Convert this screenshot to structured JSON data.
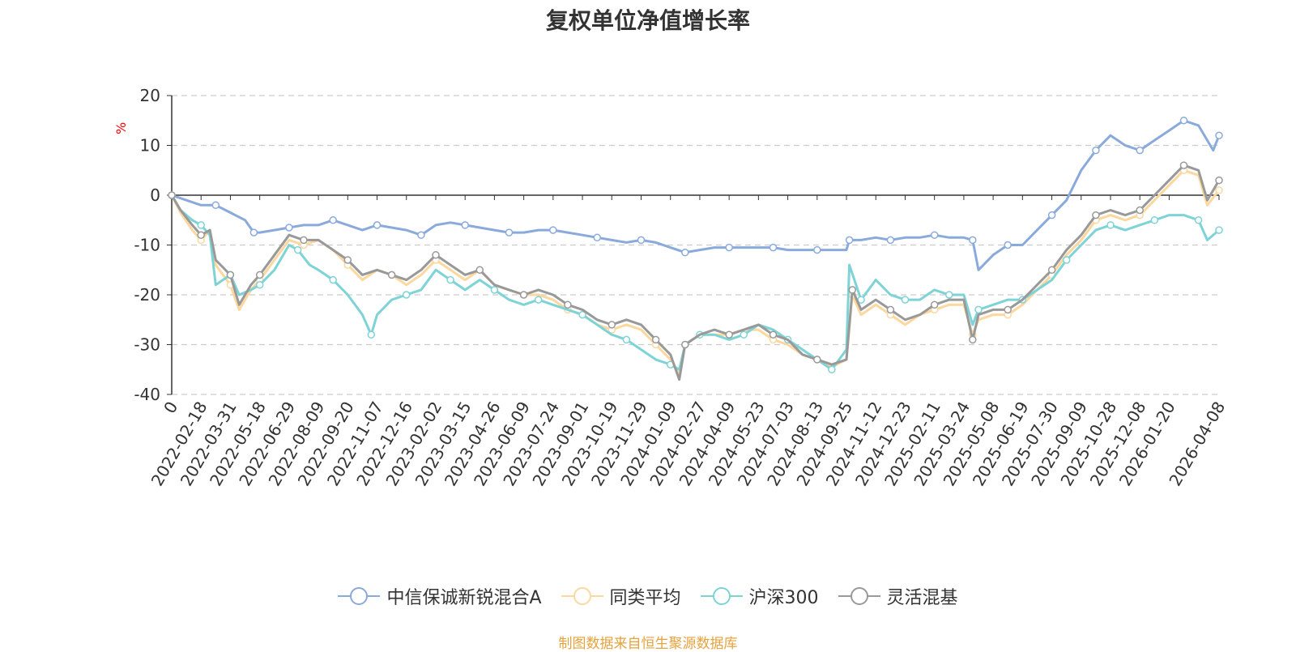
{
  "chart_data": {
    "type": "line",
    "title": "复权单位净值增长率",
    "ylabel": "%",
    "ylim": [
      -40,
      20
    ],
    "yticks": [
      20,
      10,
      0,
      -10,
      -20,
      -30,
      -40
    ],
    "grid": true,
    "legend_position": "bottom",
    "x_labels": [
      "0",
      "2022-02-18",
      "2022-03-31",
      "2022-05-18",
      "2022-06-29",
      "2022-08-09",
      "2022-09-20",
      "2022-11-07",
      "2022-12-16",
      "2023-02-02",
      "2023-03-15",
      "2023-04-26",
      "2023-06-09",
      "2023-07-24",
      "2023-09-01",
      "2023-10-19",
      "2023-11-29",
      "2024-01-09",
      "2024-02-27",
      "2024-04-09",
      "2024-05-23",
      "2024-07-03",
      "2024-08-13",
      "2024-09-25",
      "2024-11-12",
      "2024-12-23",
      "2025-02-11",
      "2025-03-24",
      "2025-05-08",
      "2025-06-19",
      "2025-07-30",
      "2025-09-09",
      "2025-10-28",
      "2025-12-08",
      "2026-01-20",
      "2026-04-08"
    ],
    "x_positions": [
      0,
      1,
      2,
      3,
      4,
      5,
      6,
      7,
      8,
      9,
      10,
      11,
      12,
      13,
      14,
      15,
      16,
      17,
      18,
      19,
      20,
      21,
      22,
      23,
      24,
      25,
      26,
      27,
      28,
      29,
      30,
      31,
      32,
      33,
      34,
      35.7
    ],
    "series": [
      {
        "name": "中信保诚新锐混合A",
        "color": "#8aaadc",
        "points": [
          [
            0,
            0
          ],
          [
            0.5,
            -1
          ],
          [
            1,
            -2
          ],
          [
            1.5,
            -2
          ],
          [
            2,
            -3.5
          ],
          [
            2.5,
            -5
          ],
          [
            2.8,
            -7.5
          ],
          [
            3,
            -7.5
          ],
          [
            3.5,
            -7
          ],
          [
            4,
            -6.5
          ],
          [
            4.5,
            -6
          ],
          [
            5,
            -6
          ],
          [
            5.5,
            -5
          ],
          [
            6,
            -6
          ],
          [
            6.5,
            -7
          ],
          [
            7,
            -6
          ],
          [
            7.5,
            -6.5
          ],
          [
            8,
            -7
          ],
          [
            8.5,
            -8
          ],
          [
            9,
            -6
          ],
          [
            9.5,
            -5.5
          ],
          [
            10,
            -6
          ],
          [
            10.5,
            -6.5
          ],
          [
            11,
            -7
          ],
          [
            11.5,
            -7.5
          ],
          [
            12,
            -7.5
          ],
          [
            12.5,
            -7
          ],
          [
            13,
            -7
          ],
          [
            13.5,
            -7.5
          ],
          [
            14,
            -8
          ],
          [
            14.5,
            -8.5
          ],
          [
            15,
            -9
          ],
          [
            15.5,
            -9.5
          ],
          [
            16,
            -9
          ],
          [
            16.5,
            -9.5
          ],
          [
            17,
            -10.5
          ],
          [
            17.5,
            -11.5
          ],
          [
            18,
            -11
          ],
          [
            18.5,
            -10.5
          ],
          [
            19,
            -10.5
          ],
          [
            19.5,
            -10.5
          ],
          [
            20,
            -10.5
          ],
          [
            20.5,
            -10.5
          ],
          [
            21,
            -11
          ],
          [
            21.5,
            -11
          ],
          [
            22,
            -11
          ],
          [
            22.5,
            -11
          ],
          [
            23,
            -11
          ],
          [
            23.1,
            -9
          ],
          [
            23.5,
            -9
          ],
          [
            24,
            -8.5
          ],
          [
            24.5,
            -9
          ],
          [
            25,
            -8.5
          ],
          [
            25.5,
            -8.5
          ],
          [
            26,
            -8
          ],
          [
            26.5,
            -8.5
          ],
          [
            27,
            -8.5
          ],
          [
            27.3,
            -9
          ],
          [
            27.5,
            -15
          ],
          [
            28,
            -12
          ],
          [
            28.5,
            -10
          ],
          [
            29,
            -10
          ],
          [
            29.5,
            -7
          ],
          [
            30,
            -4
          ],
          [
            30.5,
            -1
          ],
          [
            31,
            5
          ],
          [
            31.5,
            9
          ],
          [
            32,
            12
          ],
          [
            32.5,
            10
          ],
          [
            33,
            9
          ],
          [
            33.5,
            11
          ],
          [
            34,
            13
          ],
          [
            34.5,
            15
          ],
          [
            35,
            14
          ],
          [
            35.5,
            9
          ],
          [
            35.7,
            12
          ]
        ]
      },
      {
        "name": "同类平均",
        "color": "#fcd79e",
        "points": [
          [
            0,
            0
          ],
          [
            0.3,
            -3.5
          ],
          [
            0.7,
            -7
          ],
          [
            1,
            -9
          ],
          [
            1.3,
            -7
          ],
          [
            1.5,
            -14
          ],
          [
            2,
            -18
          ],
          [
            2.3,
            -23
          ],
          [
            2.7,
            -19
          ],
          [
            3,
            -17
          ],
          [
            3.5,
            -13
          ],
          [
            4,
            -9
          ],
          [
            4.5,
            -10
          ],
          [
            5,
            -9
          ],
          [
            5.5,
            -11
          ],
          [
            6,
            -14
          ],
          [
            6.5,
            -17
          ],
          [
            7,
            -15
          ],
          [
            7.5,
            -16
          ],
          [
            8,
            -18
          ],
          [
            8.5,
            -16
          ],
          [
            9,
            -13
          ],
          [
            9.5,
            -15
          ],
          [
            10,
            -17
          ],
          [
            10.5,
            -15
          ],
          [
            11,
            -18
          ],
          [
            11.5,
            -19
          ],
          [
            12,
            -20
          ],
          [
            12.5,
            -20
          ],
          [
            13,
            -21
          ],
          [
            13.5,
            -23
          ],
          [
            14,
            -24
          ],
          [
            14.5,
            -26
          ],
          [
            15,
            -27
          ],
          [
            15.5,
            -26
          ],
          [
            16,
            -27
          ],
          [
            16.5,
            -30
          ],
          [
            17,
            -33
          ],
          [
            17.3,
            -36
          ],
          [
            17.5,
            -30
          ],
          [
            18,
            -28
          ],
          [
            18.5,
            -28
          ],
          [
            19,
            -28
          ],
          [
            19.5,
            -27
          ],
          [
            20,
            -27
          ],
          [
            20.5,
            -29
          ],
          [
            21,
            -30
          ],
          [
            21.5,
            -32
          ],
          [
            22,
            -33
          ],
          [
            22.5,
            -34.5
          ],
          [
            23,
            -33
          ],
          [
            23.2,
            -20
          ],
          [
            23.5,
            -24
          ],
          [
            24,
            -22
          ],
          [
            24.5,
            -24
          ],
          [
            25,
            -26
          ],
          [
            25.5,
            -24
          ],
          [
            26,
            -23
          ],
          [
            26.5,
            -22
          ],
          [
            27,
            -22
          ],
          [
            27.3,
            -28
          ],
          [
            27.5,
            -25
          ],
          [
            28,
            -24
          ],
          [
            28.5,
            -24
          ],
          [
            29,
            -22
          ],
          [
            29.5,
            -19
          ],
          [
            30,
            -16
          ],
          [
            30.5,
            -12
          ],
          [
            31,
            -9
          ],
          [
            31.5,
            -5
          ],
          [
            32,
            -4
          ],
          [
            32.5,
            -5
          ],
          [
            33,
            -4
          ],
          [
            33.5,
            -1
          ],
          [
            34,
            2
          ],
          [
            34.5,
            5
          ],
          [
            35,
            4
          ],
          [
            35.3,
            -2
          ],
          [
            35.7,
            1
          ]
        ]
      },
      {
        "name": "沪深300",
        "color": "#7dd3d6",
        "points": [
          [
            0,
            0
          ],
          [
            0.3,
            -3
          ],
          [
            0.7,
            -5
          ],
          [
            1,
            -6
          ],
          [
            1.3,
            -8
          ],
          [
            1.5,
            -18
          ],
          [
            2,
            -16
          ],
          [
            2.3,
            -20
          ],
          [
            2.7,
            -19
          ],
          [
            3,
            -18
          ],
          [
            3.5,
            -15
          ],
          [
            4,
            -10
          ],
          [
            4.3,
            -11
          ],
          [
            4.7,
            -14
          ],
          [
            5,
            -15
          ],
          [
            5.5,
            -17
          ],
          [
            6,
            -20
          ],
          [
            6.5,
            -24
          ],
          [
            6.8,
            -28
          ],
          [
            7,
            -24
          ],
          [
            7.5,
            -21
          ],
          [
            8,
            -20
          ],
          [
            8.5,
            -19
          ],
          [
            9,
            -15
          ],
          [
            9.5,
            -17
          ],
          [
            10,
            -19
          ],
          [
            10.5,
            -17
          ],
          [
            11,
            -19
          ],
          [
            11.5,
            -21
          ],
          [
            12,
            -22
          ],
          [
            12.5,
            -21
          ],
          [
            13,
            -22
          ],
          [
            13.5,
            -23
          ],
          [
            14,
            -24
          ],
          [
            14.5,
            -26
          ],
          [
            15,
            -28
          ],
          [
            15.5,
            -29
          ],
          [
            16,
            -31
          ],
          [
            16.5,
            -33
          ],
          [
            17,
            -34
          ],
          [
            17.3,
            -35
          ],
          [
            17.5,
            -30
          ],
          [
            18,
            -28
          ],
          [
            18.5,
            -28
          ],
          [
            19,
            -29
          ],
          [
            19.5,
            -28
          ],
          [
            20,
            -26
          ],
          [
            20.5,
            -27
          ],
          [
            21,
            -29
          ],
          [
            21.5,
            -31
          ],
          [
            22,
            -33
          ],
          [
            22.5,
            -35
          ],
          [
            23,
            -31
          ],
          [
            23.1,
            -14
          ],
          [
            23.5,
            -21
          ],
          [
            24,
            -17
          ],
          [
            24.5,
            -20
          ],
          [
            25,
            -21
          ],
          [
            25.5,
            -21
          ],
          [
            26,
            -19
          ],
          [
            26.5,
            -20
          ],
          [
            27,
            -20
          ],
          [
            27.3,
            -26
          ],
          [
            27.5,
            -23
          ],
          [
            28,
            -22
          ],
          [
            28.5,
            -21
          ],
          [
            29,
            -21
          ],
          [
            29.5,
            -19
          ],
          [
            30,
            -17
          ],
          [
            30.5,
            -13
          ],
          [
            31,
            -10
          ],
          [
            31.5,
            -7
          ],
          [
            32,
            -6
          ],
          [
            32.5,
            -7
          ],
          [
            33,
            -6
          ],
          [
            33.5,
            -5
          ],
          [
            34,
            -4
          ],
          [
            34.5,
            -4
          ],
          [
            35,
            -5
          ],
          [
            35.3,
            -9
          ],
          [
            35.7,
            -7
          ]
        ]
      },
      {
        "name": "灵活混基",
        "color": "#999999",
        "points": [
          [
            0,
            0
          ],
          [
            0.3,
            -3
          ],
          [
            0.7,
            -6
          ],
          [
            1,
            -8
          ],
          [
            1.3,
            -7
          ],
          [
            1.5,
            -13
          ],
          [
            2,
            -16
          ],
          [
            2.3,
            -22
          ],
          [
            2.7,
            -18
          ],
          [
            3,
            -16
          ],
          [
            3.5,
            -12
          ],
          [
            4,
            -8
          ],
          [
            4.5,
            -9
          ],
          [
            5,
            -9
          ],
          [
            5.5,
            -11
          ],
          [
            6,
            -13
          ],
          [
            6.5,
            -16
          ],
          [
            7,
            -15
          ],
          [
            7.5,
            -16
          ],
          [
            8,
            -17
          ],
          [
            8.5,
            -15
          ],
          [
            9,
            -12
          ],
          [
            9.5,
            -14
          ],
          [
            10,
            -16
          ],
          [
            10.5,
            -15
          ],
          [
            11,
            -18
          ],
          [
            11.5,
            -19
          ],
          [
            12,
            -20
          ],
          [
            12.5,
            -19
          ],
          [
            13,
            -20
          ],
          [
            13.5,
            -22
          ],
          [
            14,
            -23
          ],
          [
            14.5,
            -25
          ],
          [
            15,
            -26
          ],
          [
            15.5,
            -25
          ],
          [
            16,
            -26
          ],
          [
            16.5,
            -29
          ],
          [
            17,
            -32
          ],
          [
            17.3,
            -37
          ],
          [
            17.5,
            -30
          ],
          [
            18,
            -28
          ],
          [
            18.5,
            -27
          ],
          [
            19,
            -28
          ],
          [
            19.5,
            -27
          ],
          [
            20,
            -26
          ],
          [
            20.5,
            -28
          ],
          [
            21,
            -29
          ],
          [
            21.5,
            -32
          ],
          [
            22,
            -33
          ],
          [
            22.5,
            -34
          ],
          [
            23,
            -33
          ],
          [
            23.2,
            -19
          ],
          [
            23.5,
            -23
          ],
          [
            24,
            -21
          ],
          [
            24.5,
            -23
          ],
          [
            25,
            -25
          ],
          [
            25.5,
            -24
          ],
          [
            26,
            -22
          ],
          [
            26.5,
            -21
          ],
          [
            27,
            -21
          ],
          [
            27.3,
            -29
          ],
          [
            27.5,
            -24
          ],
          [
            28,
            -23
          ],
          [
            28.5,
            -23
          ],
          [
            29,
            -21
          ],
          [
            29.5,
            -18
          ],
          [
            30,
            -15
          ],
          [
            30.5,
            -11
          ],
          [
            31,
            -8
          ],
          [
            31.5,
            -4
          ],
          [
            32,
            -3
          ],
          [
            32.5,
            -4
          ],
          [
            33,
            -3
          ],
          [
            33.5,
            0
          ],
          [
            34,
            3
          ],
          [
            34.5,
            6
          ],
          [
            35,
            5
          ],
          [
            35.3,
            -1
          ],
          [
            35.7,
            3
          ]
        ]
      }
    ]
  },
  "source_note": "制图数据来自恒生聚源数据库"
}
